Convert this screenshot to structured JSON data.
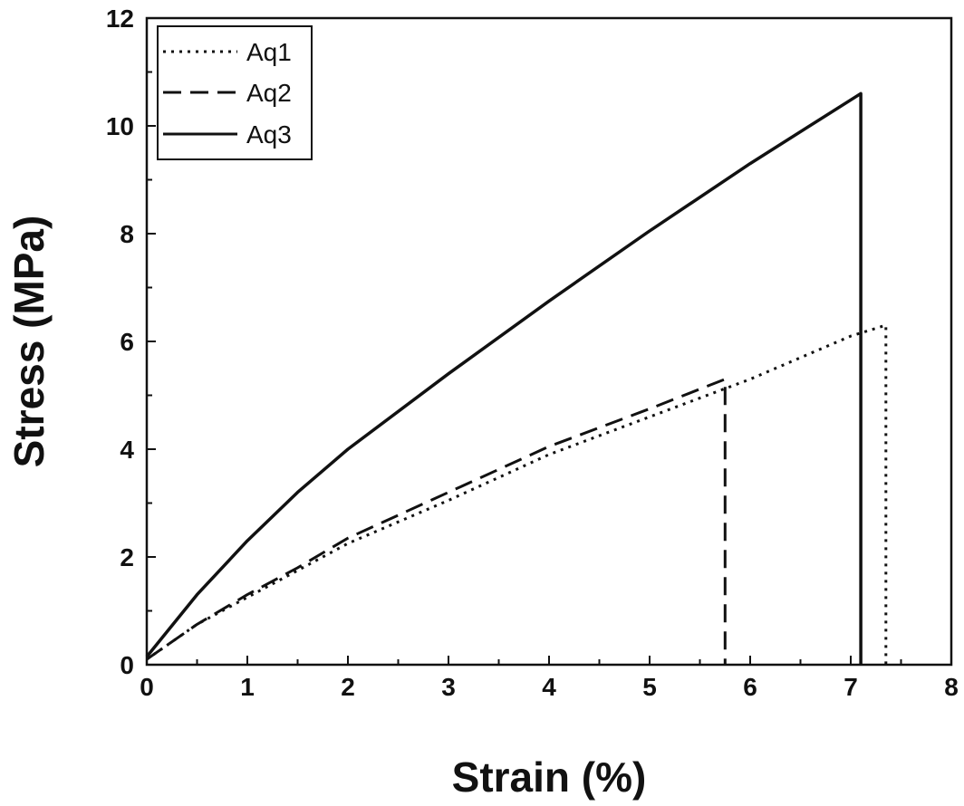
{
  "chart_data": {
    "type": "line",
    "xlabel": "Strain (%)",
    "ylabel": "Stress (MPa)",
    "xlim": [
      0,
      8
    ],
    "ylim": [
      0,
      12
    ],
    "xticks": [
      "0",
      "1",
      "2",
      "3",
      "4",
      "5",
      "6",
      "7",
      "8"
    ],
    "yticks": [
      "0",
      "2",
      "4",
      "6",
      "8",
      "10",
      "12"
    ],
    "grid": false,
    "legend_position": "top-left",
    "series": [
      {
        "name": "Aq1",
        "style": "dotted",
        "color": "#111111",
        "points": [
          [
            0,
            0.1
          ],
          [
            0.5,
            0.75
          ],
          [
            1,
            1.25
          ],
          [
            1.5,
            1.75
          ],
          [
            2,
            2.25
          ],
          [
            3,
            3.05
          ],
          [
            4,
            3.9
          ],
          [
            5,
            4.6
          ],
          [
            6,
            5.3
          ],
          [
            7,
            6.1
          ],
          [
            7.35,
            6.3
          ],
          [
            7.35,
            0
          ]
        ]
      },
      {
        "name": "Aq2",
        "style": "dashed",
        "color": "#111111",
        "points": [
          [
            0,
            0.1
          ],
          [
            0.5,
            0.75
          ],
          [
            1,
            1.3
          ],
          [
            1.5,
            1.8
          ],
          [
            2,
            2.35
          ],
          [
            3,
            3.2
          ],
          [
            4,
            4.05
          ],
          [
            5,
            4.75
          ],
          [
            5.75,
            5.3
          ],
          [
            5.75,
            0
          ]
        ]
      },
      {
        "name": "Aq3",
        "style": "solid",
        "color": "#111111",
        "points": [
          [
            0,
            0.15
          ],
          [
            0.5,
            1.3
          ],
          [
            1,
            2.3
          ],
          [
            1.5,
            3.2
          ],
          [
            2,
            4.0
          ],
          [
            3,
            5.4
          ],
          [
            4,
            6.75
          ],
          [
            5,
            8.05
          ],
          [
            6,
            9.3
          ],
          [
            7.1,
            10.6
          ],
          [
            7.1,
            0
          ]
        ]
      }
    ]
  }
}
